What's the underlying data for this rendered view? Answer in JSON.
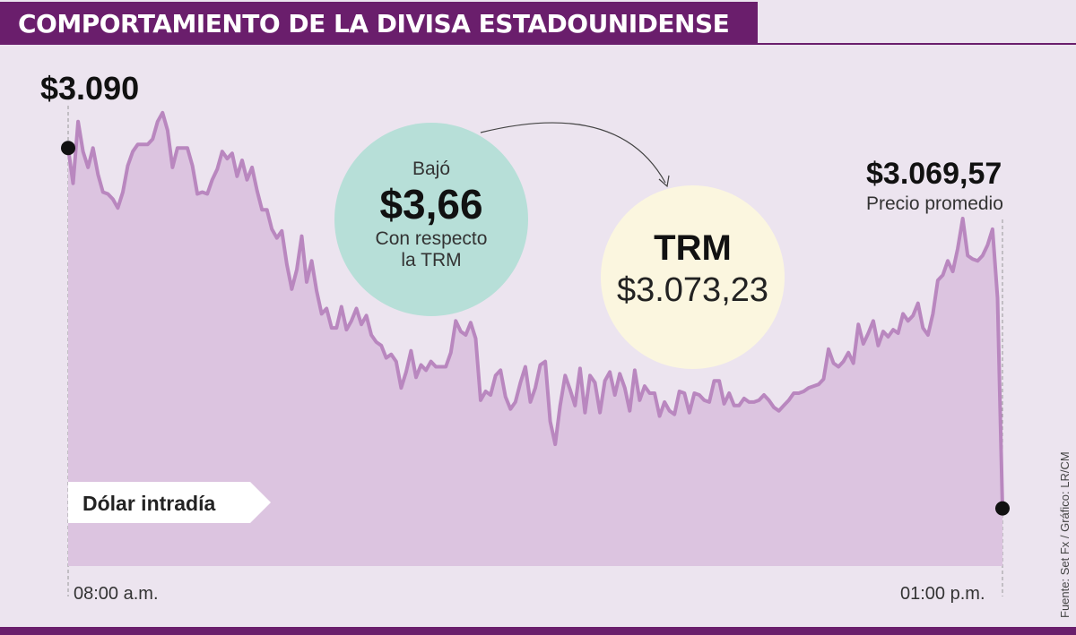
{
  "header": {
    "title": "COMPORTAMIENTO DE LA DIVISA ESTADOUNIDENSE"
  },
  "annotations": {
    "start_value": "$3.090",
    "end_value": "$3.069,57",
    "end_caption": "Precio promedio",
    "series_tag": "Dólar intradía",
    "x_start": "08:00 a.m.",
    "x_end": "01:00 p.m.",
    "drop_label": "Bajó",
    "drop_value": "$3,66",
    "drop_note_line1": "Con respecto",
    "drop_note_line2": "la TRM",
    "trm_label": "TRM",
    "trm_value": "$3.073,23",
    "source": "Fuente: Set Fx / Gráfico: LR/CM"
  },
  "colors": {
    "title_bar": "#6a1e6c",
    "background": "#ece4ef",
    "area_fill": "#dcc4e0",
    "line": "#b987bf",
    "drop_circle": "#b7dfd8",
    "trm_circle": "#fbf6df"
  },
  "chart_data": {
    "type": "area",
    "x_range": [
      "08:00 a.m.",
      "01:00 p.m."
    ],
    "ylim": [
      3066.3,
      3092.4
    ],
    "grid": false,
    "legend": "none",
    "series": [
      {
        "name": "Dólar intradía",
        "values": [
          3090.0,
          3088.0,
          3091.5,
          3089.8,
          3088.9,
          3090.0,
          3088.5,
          3087.5,
          3087.4,
          3087.1,
          3086.6,
          3087.5,
          3089.0,
          3089.8,
          3090.2,
          3090.2,
          3090.2,
          3090.5,
          3091.5,
          3092.0,
          3091.0,
          3088.9,
          3090.0,
          3090.0,
          3090.0,
          3089.0,
          3087.4,
          3087.5,
          3087.4,
          3088.2,
          3088.8,
          3089.8,
          3089.4,
          3089.7,
          3088.4,
          3089.3,
          3088.2,
          3088.9,
          3087.6,
          3086.5,
          3086.5,
          3085.4,
          3084.9,
          3085.3,
          3083.4,
          3082.0,
          3083.1,
          3085.0,
          3082.4,
          3083.6,
          3081.9,
          3080.6,
          3080.9,
          3079.8,
          3079.8,
          3081.0,
          3079.7,
          3080.2,
          3080.9,
          3080.0,
          3080.5,
          3079.4,
          3079.0,
          3078.8,
          3078.1,
          3078.3,
          3077.9,
          3076.4,
          3077.3,
          3078.5,
          3077.0,
          3077.7,
          3077.4,
          3077.9,
          3077.6,
          3077.6,
          3077.6,
          3078.4,
          3080.2,
          3079.6,
          3079.4,
          3080.1,
          3079.2,
          3075.7,
          3076.2,
          3076.0,
          3077.1,
          3077.4,
          3075.9,
          3075.2,
          3075.6,
          3076.7,
          3077.6,
          3075.6,
          3076.4,
          3077.7,
          3077.9,
          3074.5,
          3073.2,
          3075.4,
          3077.1,
          3076.3,
          3075.4,
          3077.5,
          3075.0,
          3077.1,
          3076.7,
          3075.0,
          3076.8,
          3077.3,
          3076.0,
          3077.2,
          3076.4,
          3075.1,
          3077.4,
          3075.7,
          3076.5,
          3076.1,
          3076.1,
          3074.8,
          3075.6,
          3075.1,
          3074.9,
          3076.2,
          3076.1,
          3075.0,
          3076.1,
          3076.0,
          3075.7,
          3075.6,
          3076.8,
          3076.8,
          3075.5,
          3076.1,
          3075.4,
          3075.4,
          3075.8,
          3075.6,
          3075.6,
          3075.7,
          3076.0,
          3075.7,
          3075.3,
          3075.1,
          3075.4,
          3075.7,
          3076.1,
          3076.1,
          3076.2,
          3076.4,
          3076.5,
          3076.6,
          3076.9,
          3078.6,
          3077.8,
          3077.6,
          3077.9,
          3078.4,
          3077.8,
          3080.0,
          3078.9,
          3079.5,
          3080.2,
          3078.8,
          3079.6,
          3079.3,
          3079.7,
          3079.5,
          3080.6,
          3080.2,
          3080.5,
          3081.2,
          3079.8,
          3079.4,
          3080.6,
          3082.5,
          3082.8,
          3083.6,
          3083.0,
          3084.3,
          3086.0,
          3083.9,
          3083.7,
          3083.6,
          3083.9,
          3084.5,
          3085.4,
          3081.5,
          3069.57
        ]
      }
    ]
  }
}
